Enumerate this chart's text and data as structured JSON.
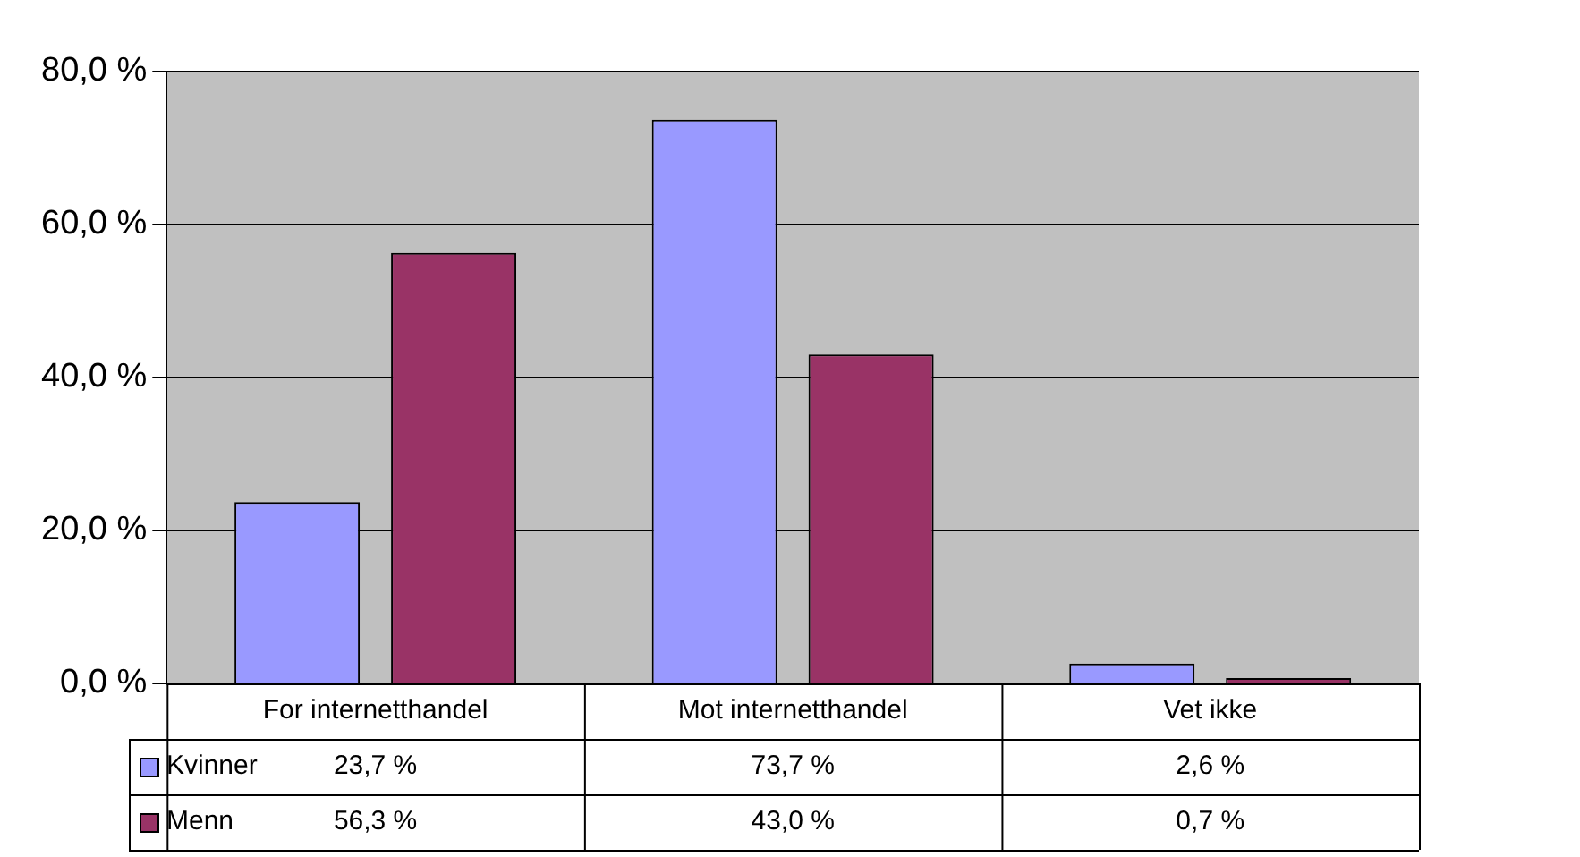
{
  "chart_data": {
    "type": "bar",
    "categories": [
      "For internetthandel",
      "Mot internetthandel",
      "Vet ikke"
    ],
    "series": [
      {
        "name": "Kvinner",
        "color": "#9999ff",
        "values": [
          23.7,
          73.7,
          2.6
        ],
        "value_labels": [
          "23,7 %",
          "73,7 %",
          "2,6 %"
        ]
      },
      {
        "name": "Menn",
        "color": "#993366",
        "values": [
          56.3,
          43.0,
          0.7
        ],
        "value_labels": [
          "56,3 %",
          "43,0 %",
          "0,7 %"
        ]
      }
    ],
    "ylim": [
      0,
      80
    ],
    "yticks": [
      {
        "value": 0,
        "label": "0,0 %"
      },
      {
        "value": 20,
        "label": "20,0 %"
      },
      {
        "value": 40,
        "label": "40,0 %"
      },
      {
        "value": 60,
        "label": "60,0 %"
      },
      {
        "value": 80,
        "label": "80,0 %"
      }
    ],
    "grid": "y",
    "legend": "bottom left"
  }
}
